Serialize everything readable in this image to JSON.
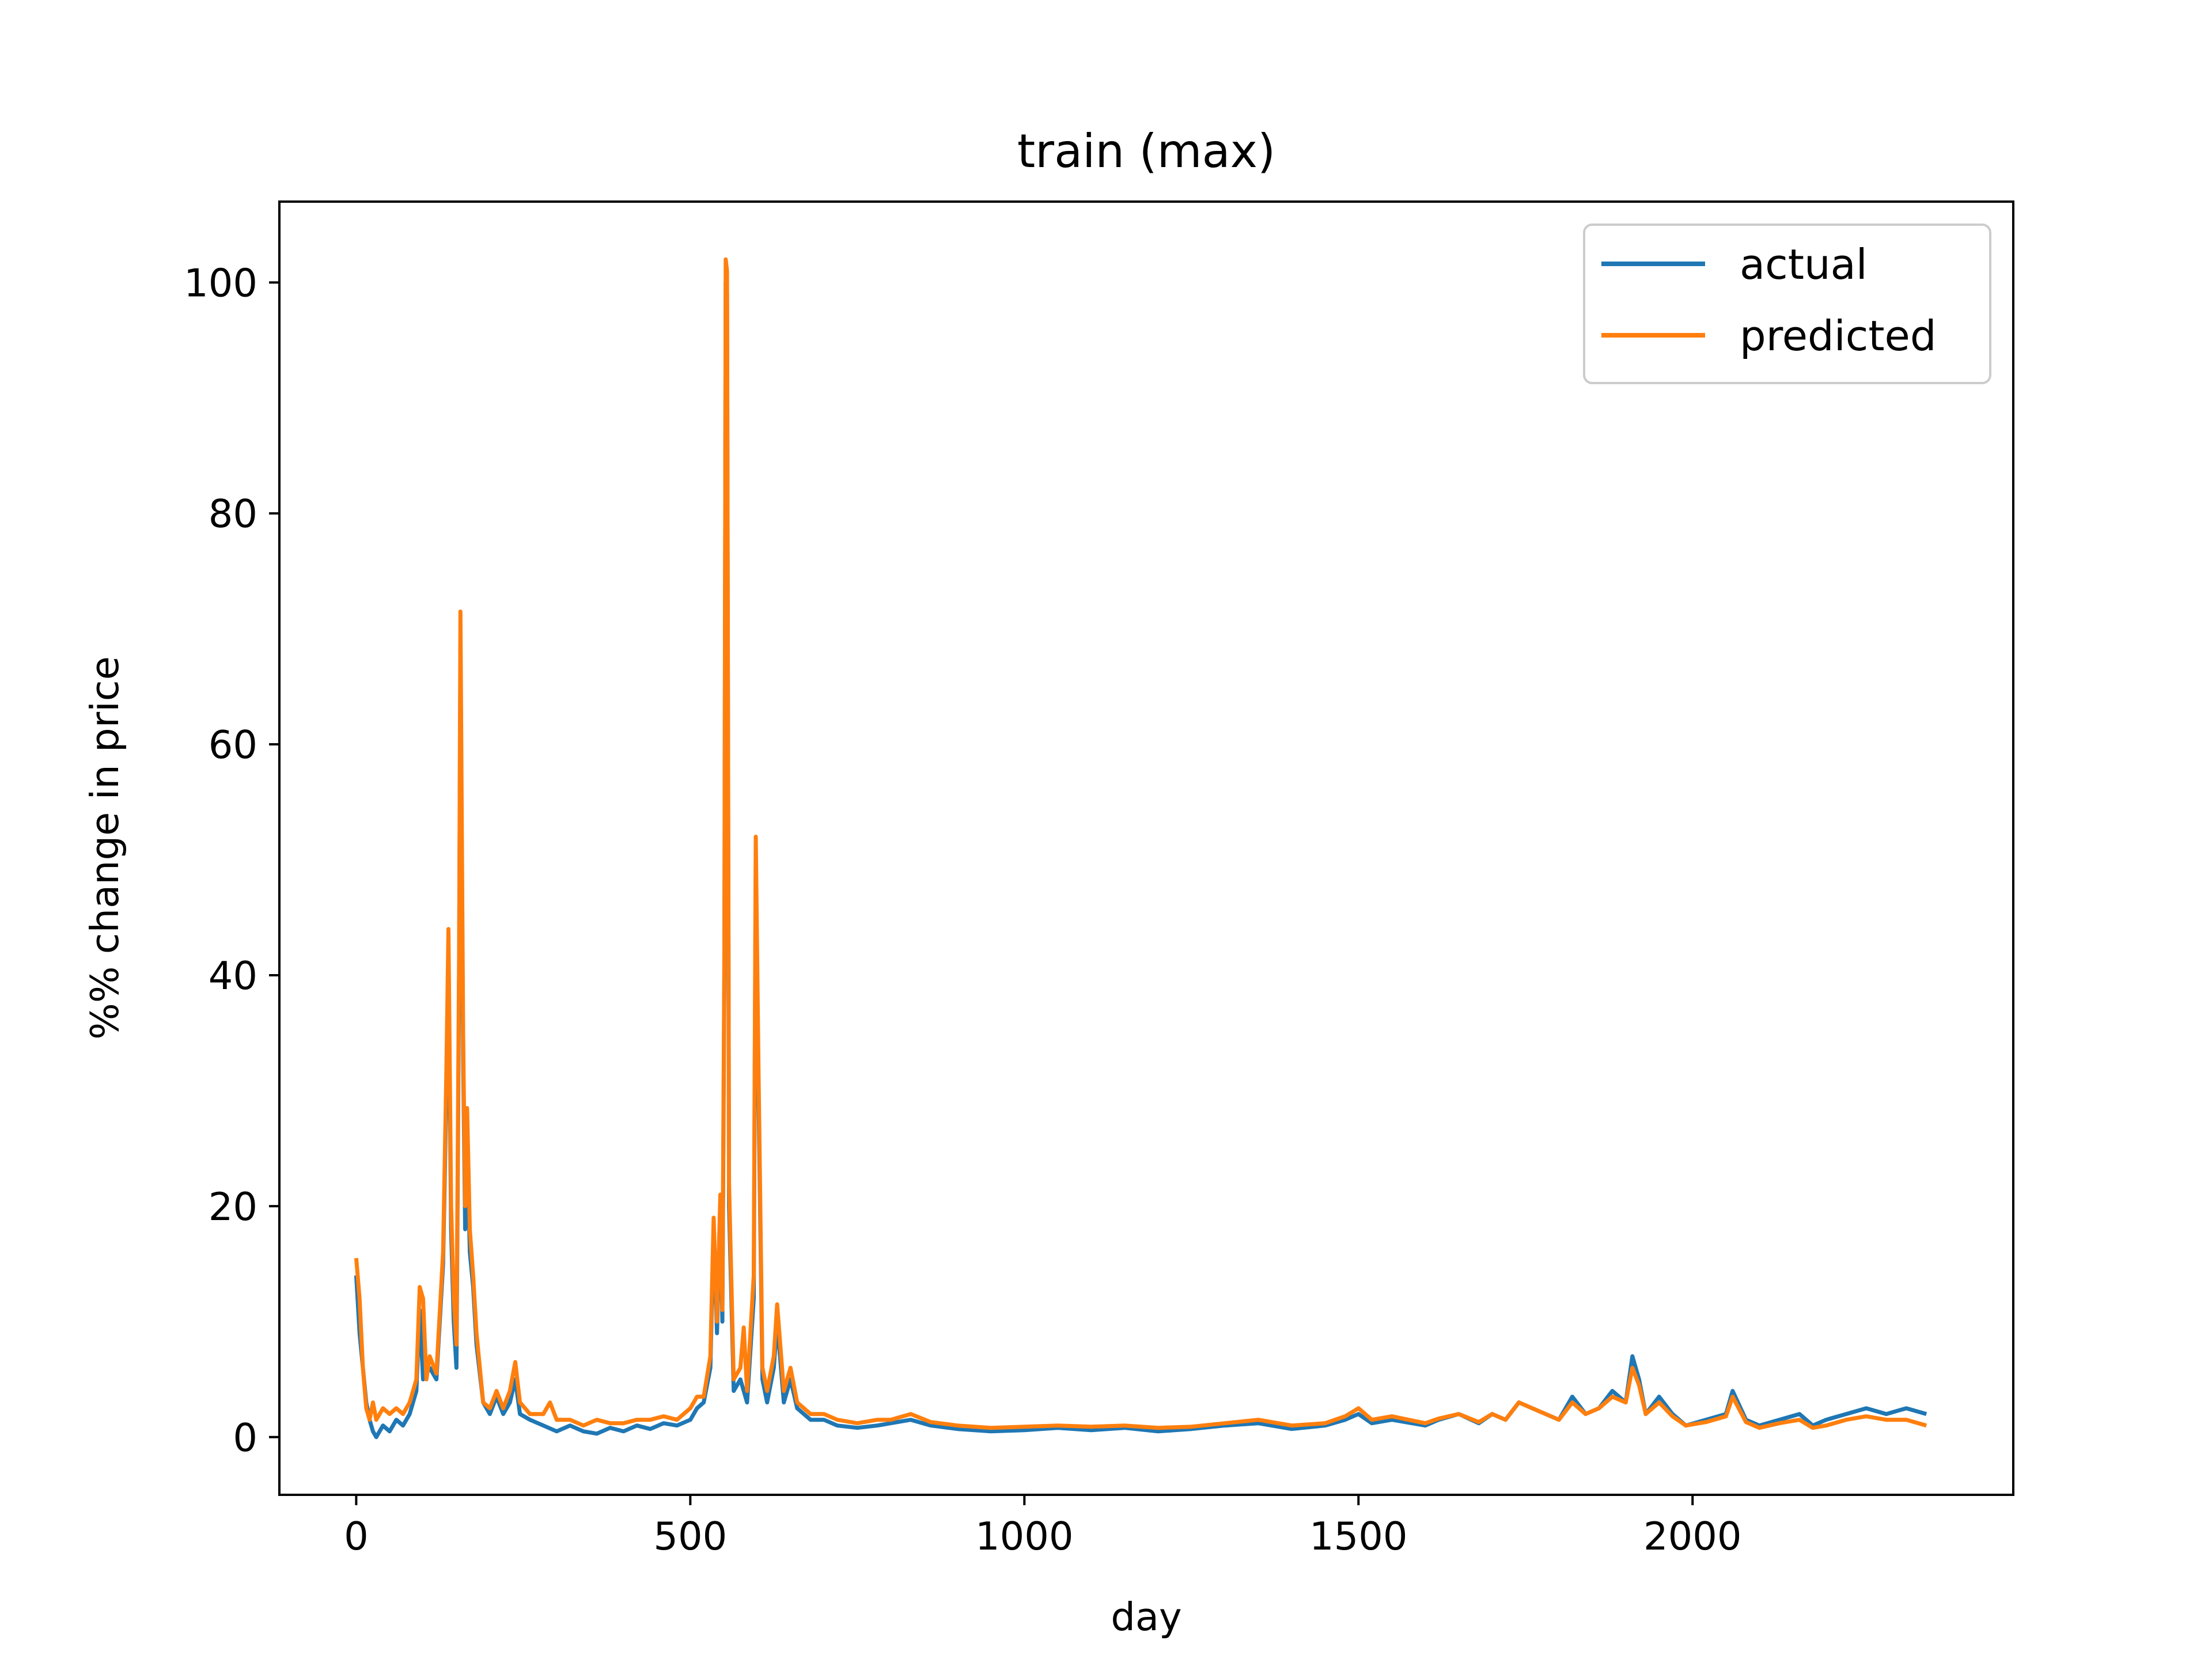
{
  "chart_data": {
    "type": "line",
    "title": "train (max)",
    "xlabel": "day",
    "ylabel": "%% change in price",
    "xlim": [
      -115,
      2480
    ],
    "ylim": [
      -5,
      107
    ],
    "xticks": [
      0,
      500,
      1000,
      1500,
      2000
    ],
    "yticks": [
      0,
      20,
      40,
      60,
      80,
      100
    ],
    "grid": false,
    "legend_position": "top-right",
    "series": [
      {
        "name": "actual",
        "color": "#1f77b4",
        "points": [
          [
            0,
            14
          ],
          [
            5,
            9
          ],
          [
            10,
            6
          ],
          [
            15,
            3
          ],
          [
            20,
            1.5
          ],
          [
            25,
            0.5
          ],
          [
            30,
            0
          ],
          [
            40,
            1
          ],
          [
            50,
            0.5
          ],
          [
            60,
            1.5
          ],
          [
            70,
            1
          ],
          [
            80,
            2
          ],
          [
            85,
            3
          ],
          [
            90,
            4
          ],
          [
            95,
            11
          ],
          [
            100,
            5
          ],
          [
            110,
            6
          ],
          [
            120,
            5
          ],
          [
            130,
            15
          ],
          [
            135,
            30
          ],
          [
            138,
            42
          ],
          [
            142,
            18
          ],
          [
            146,
            10
          ],
          [
            150,
            6
          ],
          [
            154,
            40
          ],
          [
            156,
            69
          ],
          [
            160,
            33
          ],
          [
            163,
            18
          ],
          [
            166,
            26
          ],
          [
            170,
            16
          ],
          [
            175,
            13
          ],
          [
            180,
            8
          ],
          [
            190,
            3
          ],
          [
            200,
            2
          ],
          [
            210,
            3.5
          ],
          [
            220,
            2
          ],
          [
            230,
            3
          ],
          [
            238,
            5
          ],
          [
            245,
            2
          ],
          [
            260,
            1.5
          ],
          [
            280,
            1
          ],
          [
            300,
            0.5
          ],
          [
            320,
            1
          ],
          [
            340,
            0.5
          ],
          [
            360,
            0.3
          ],
          [
            380,
            0.8
          ],
          [
            400,
            0.5
          ],
          [
            420,
            1
          ],
          [
            440,
            0.7
          ],
          [
            460,
            1.2
          ],
          [
            480,
            1
          ],
          [
            500,
            1.5
          ],
          [
            510,
            2.5
          ],
          [
            520,
            3
          ],
          [
            530,
            6
          ],
          [
            535,
            18
          ],
          [
            540,
            9
          ],
          [
            545,
            20
          ],
          [
            548,
            10
          ],
          [
            551,
            40
          ],
          [
            553,
            100
          ],
          [
            555,
            99
          ],
          [
            558,
            20
          ],
          [
            565,
            4
          ],
          [
            575,
            5
          ],
          [
            585,
            3
          ],
          [
            595,
            12
          ],
          [
            598,
            50
          ],
          [
            602,
            30
          ],
          [
            608,
            5
          ],
          [
            615,
            3
          ],
          [
            625,
            6
          ],
          [
            630,
            10
          ],
          [
            640,
            3
          ],
          [
            650,
            5
          ],
          [
            660,
            2.5
          ],
          [
            680,
            1.5
          ],
          [
            700,
            1.5
          ],
          [
            720,
            1
          ],
          [
            750,
            0.8
          ],
          [
            780,
            1
          ],
          [
            800,
            1.2
          ],
          [
            830,
            1.5
          ],
          [
            860,
            1
          ],
          [
            900,
            0.7
          ],
          [
            950,
            0.5
          ],
          [
            1000,
            0.6
          ],
          [
            1050,
            0.8
          ],
          [
            1100,
            0.6
          ],
          [
            1150,
            0.8
          ],
          [
            1200,
            0.5
          ],
          [
            1250,
            0.7
          ],
          [
            1300,
            1
          ],
          [
            1350,
            1.2
          ],
          [
            1400,
            0.7
          ],
          [
            1450,
            1
          ],
          [
            1480,
            1.5
          ],
          [
            1500,
            2
          ],
          [
            1520,
            1.2
          ],
          [
            1550,
            1.5
          ],
          [
            1600,
            1
          ],
          [
            1620,
            1.5
          ],
          [
            1650,
            2
          ],
          [
            1680,
            1.2
          ],
          [
            1700,
            2
          ],
          [
            1720,
            1.5
          ],
          [
            1740,
            3
          ],
          [
            1760,
            2.5
          ],
          [
            1780,
            2
          ],
          [
            1800,
            1.5
          ],
          [
            1820,
            3.5
          ],
          [
            1840,
            2
          ],
          [
            1860,
            2.5
          ],
          [
            1880,
            4
          ],
          [
            1900,
            3
          ],
          [
            1910,
            7
          ],
          [
            1920,
            5
          ],
          [
            1930,
            2
          ],
          [
            1950,
            3.5
          ],
          [
            1970,
            2
          ],
          [
            1990,
            1
          ],
          [
            2020,
            1.5
          ],
          [
            2050,
            2
          ],
          [
            2060,
            4
          ],
          [
            2080,
            1.5
          ],
          [
            2100,
            1
          ],
          [
            2130,
            1.5
          ],
          [
            2160,
            2
          ],
          [
            2180,
            1
          ],
          [
            2200,
            1.5
          ],
          [
            2230,
            2
          ],
          [
            2260,
            2.5
          ],
          [
            2290,
            2
          ],
          [
            2320,
            2.5
          ],
          [
            2350,
            2
          ]
        ]
      },
      {
        "name": "predicted",
        "color": "#ff7f0e",
        "points": [
          [
            0,
            15.5
          ],
          [
            5,
            12
          ],
          [
            10,
            6
          ],
          [
            15,
            2.5
          ],
          [
            20,
            1.5
          ],
          [
            25,
            3
          ],
          [
            30,
            1.5
          ],
          [
            40,
            2.5
          ],
          [
            50,
            2
          ],
          [
            60,
            2.5
          ],
          [
            70,
            2
          ],
          [
            80,
            3
          ],
          [
            85,
            4
          ],
          [
            90,
            5
          ],
          [
            95,
            13
          ],
          [
            100,
            12
          ],
          [
            105,
            5
          ],
          [
            110,
            7
          ],
          [
            120,
            5.5
          ],
          [
            130,
            16
          ],
          [
            135,
            32
          ],
          [
            138,
            44
          ],
          [
            142,
            20
          ],
          [
            146,
            12
          ],
          [
            150,
            8
          ],
          [
            154,
            42
          ],
          [
            156,
            71.5
          ],
          [
            160,
            35
          ],
          [
            163,
            20
          ],
          [
            166,
            28.5
          ],
          [
            170,
            18
          ],
          [
            175,
            14
          ],
          [
            180,
            9
          ],
          [
            190,
            3
          ],
          [
            200,
            2.5
          ],
          [
            210,
            4
          ],
          [
            220,
            2.5
          ],
          [
            230,
            4
          ],
          [
            238,
            6.5
          ],
          [
            245,
            3
          ],
          [
            260,
            2
          ],
          [
            280,
            2
          ],
          [
            290,
            3
          ],
          [
            300,
            1.5
          ],
          [
            320,
            1.5
          ],
          [
            340,
            1
          ],
          [
            360,
            1.5
          ],
          [
            380,
            1.2
          ],
          [
            400,
            1.2
          ],
          [
            420,
            1.5
          ],
          [
            440,
            1.5
          ],
          [
            460,
            1.8
          ],
          [
            480,
            1.5
          ],
          [
            500,
            2.5
          ],
          [
            510,
            3.5
          ],
          [
            520,
            3.5
          ],
          [
            530,
            7
          ],
          [
            535,
            19
          ],
          [
            540,
            10
          ],
          [
            545,
            21
          ],
          [
            548,
            11
          ],
          [
            551,
            42
          ],
          [
            553,
            102
          ],
          [
            555,
            101
          ],
          [
            558,
            22
          ],
          [
            565,
            5
          ],
          [
            575,
            6
          ],
          [
            580,
            9.5
          ],
          [
            585,
            4
          ],
          [
            595,
            14
          ],
          [
            598,
            52
          ],
          [
            602,
            32
          ],
          [
            608,
            6
          ],
          [
            615,
            4
          ],
          [
            625,
            7
          ],
          [
            630,
            11.5
          ],
          [
            640,
            4
          ],
          [
            650,
            6
          ],
          [
            660,
            3
          ],
          [
            680,
            2
          ],
          [
            700,
            2
          ],
          [
            720,
            1.5
          ],
          [
            750,
            1.2
          ],
          [
            780,
            1.5
          ],
          [
            800,
            1.5
          ],
          [
            830,
            2
          ],
          [
            860,
            1.3
          ],
          [
            900,
            1
          ],
          [
            950,
            0.8
          ],
          [
            1000,
            0.9
          ],
          [
            1050,
            1
          ],
          [
            1100,
            0.9
          ],
          [
            1150,
            1
          ],
          [
            1200,
            0.8
          ],
          [
            1250,
            0.9
          ],
          [
            1300,
            1.2
          ],
          [
            1350,
            1.5
          ],
          [
            1400,
            1
          ],
          [
            1450,
            1.2
          ],
          [
            1480,
            1.8
          ],
          [
            1500,
            2.5
          ],
          [
            1520,
            1.5
          ],
          [
            1550,
            1.8
          ],
          [
            1600,
            1.2
          ],
          [
            1620,
            1.6
          ],
          [
            1650,
            2
          ],
          [
            1680,
            1.3
          ],
          [
            1700,
            2
          ],
          [
            1720,
            1.5
          ],
          [
            1740,
            3
          ],
          [
            1760,
            2.5
          ],
          [
            1780,
            2
          ],
          [
            1800,
            1.5
          ],
          [
            1820,
            3
          ],
          [
            1840,
            2
          ],
          [
            1860,
            2.5
          ],
          [
            1880,
            3.5
          ],
          [
            1900,
            3
          ],
          [
            1910,
            6
          ],
          [
            1920,
            4.5
          ],
          [
            1930,
            2
          ],
          [
            1950,
            3
          ],
          [
            1970,
            1.8
          ],
          [
            1990,
            1
          ],
          [
            2020,
            1.3
          ],
          [
            2050,
            1.8
          ],
          [
            2060,
            3.5
          ],
          [
            2080,
            1.3
          ],
          [
            2100,
            0.8
          ],
          [
            2130,
            1.2
          ],
          [
            2160,
            1.5
          ],
          [
            2180,
            0.8
          ],
          [
            2200,
            1
          ],
          [
            2230,
            1.5
          ],
          [
            2260,
            1.8
          ],
          [
            2290,
            1.5
          ],
          [
            2320,
            1.5
          ],
          [
            2350,
            1
          ]
        ]
      }
    ]
  }
}
